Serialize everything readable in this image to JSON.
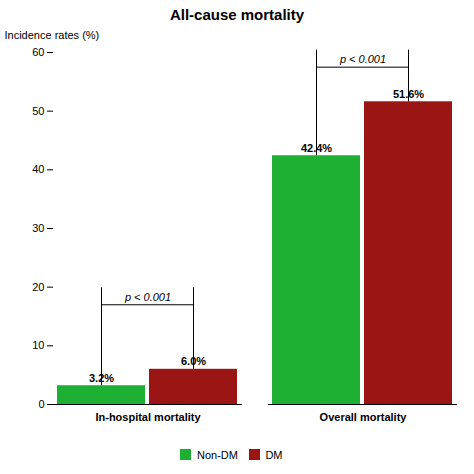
{
  "chart_data": {
    "type": "bar",
    "title": "All-cause mortality",
    "ylabel": "Incidence rates (%)",
    "categories": [
      "In-hospital mortality",
      "Overall mortality"
    ],
    "series": [
      {
        "name": "Non-DM",
        "color": "#1db032",
        "values": [
          3.2,
          42.4
        ],
        "value_labels": [
          "3.2%",
          "42.4%"
        ]
      },
      {
        "name": "DM",
        "color": "#9b1515",
        "values": [
          6.0,
          51.6
        ],
        "value_labels": [
          "6.0%",
          "51.6%"
        ]
      }
    ],
    "ylim": [
      0,
      60
    ],
    "yticks": [
      0,
      10,
      20,
      30,
      40,
      50,
      60
    ],
    "grid": false,
    "legend": "bottom",
    "data_labels": true,
    "annotations": [
      {
        "text": "p < 0.001",
        "category": "In-hospital mortality",
        "y": 17.0
      },
      {
        "text": "p < 0.001",
        "category": "Overall mortality",
        "y": 57.5
      }
    ]
  }
}
